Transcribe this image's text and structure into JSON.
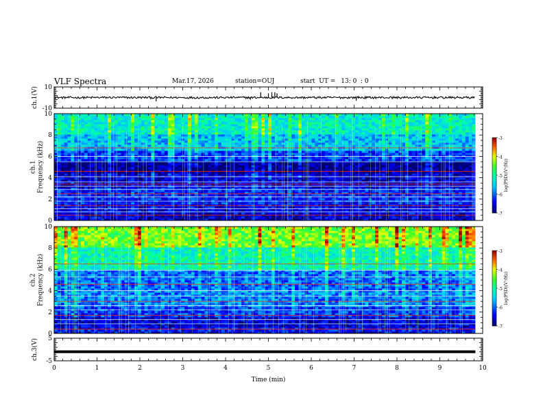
{
  "header": {
    "title": "VLF Spectra",
    "date": "Mar.17, 2026",
    "station": "station=OUJ",
    "start_label": "start  UT =",
    "start_time": "13: 0  : 0"
  },
  "chart_data": [
    {
      "type": "line",
      "name": "ch1-waveform",
      "ylabel": "ch.1(V)",
      "ylim": [
        -10,
        10
      ],
      "yticks": [
        "10",
        "-10"
      ],
      "xlim": [
        0,
        10
      ],
      "series": [
        {
          "name": "ch.1",
          "baseline": 0,
          "typical_amplitude": 1,
          "spikes": [
            {
              "t": 2.38,
              "v": -3.5
            },
            {
              "t": 4.58,
              "v": -2
            },
            {
              "t": 4.82,
              "v": 5
            },
            {
              "t": 5.0,
              "v": 4
            },
            {
              "t": 5.08,
              "v": 5
            },
            {
              "t": 5.15,
              "v": 5
            },
            {
              "t": 5.2,
              "v": 4
            },
            {
              "t": 7.05,
              "v": -3
            },
            {
              "t": 7.1,
              "v": 1.5
            },
            {
              "t": 8.73,
              "v": 1
            },
            {
              "t": 8.9,
              "v": 1
            }
          ]
        }
      ]
    },
    {
      "type": "heatmap",
      "name": "ch1-spectrogram",
      "ylabel": "ch.1\nFrequency (kHz)",
      "xlim": [
        0,
        10
      ],
      "ylim": [
        0,
        10
      ],
      "yticks": [
        "0",
        "2",
        "4",
        "6",
        "8",
        "10"
      ],
      "colorbar": {
        "label": "log(PSD)(V²/Hz)",
        "ticks": [
          "-3",
          "-4",
          "-5",
          "-6",
          "-7"
        ],
        "range": [
          -7,
          -3
        ]
      },
      "background_levels": [
        {
          "f_max": 0.5,
          "log_psd": -6.6
        },
        {
          "f_max": 1.5,
          "log_psd": -6.5
        },
        {
          "f_max": 3.0,
          "log_psd": -6.3
        },
        {
          "f_max": 4.5,
          "log_psd": -6.6
        },
        {
          "f_max": 5.5,
          "log_psd": -6.9
        },
        {
          "f_max": 6.5,
          "log_psd": -6.2
        },
        {
          "f_max": 8.0,
          "log_psd": -5.6
        },
        {
          "f_max": 10,
          "log_psd": -5.2
        }
      ],
      "lines_khz": [
        0.5,
        0.8,
        1.1,
        1.4,
        1.8,
        2.2,
        2.5,
        2.9,
        3.2,
        3.4,
        3.6,
        4.1,
        4.6,
        5.5,
        6.0,
        6.8
      ]
    },
    {
      "type": "heatmap",
      "name": "ch2-spectrogram",
      "ylabel": "ch.2\nFrequency (kHz)",
      "xlim": [
        0,
        10
      ],
      "ylim": [
        0,
        10
      ],
      "yticks": [
        "0",
        "2",
        "4",
        "6",
        "8",
        "10"
      ],
      "colorbar": {
        "label": "log(PSD)(V²/Hz)",
        "ticks": [
          "-3",
          "-4",
          "-5",
          "-6",
          "-7"
        ],
        "range": [
          -7,
          -3
        ]
      },
      "background_levels": [
        {
          "f_max": 0.5,
          "log_psd": -6.4
        },
        {
          "f_max": 1.5,
          "log_psd": -6.6
        },
        {
          "f_max": 2.5,
          "log_psd": -6.2
        },
        {
          "f_max": 4.0,
          "log_psd": -5.9
        },
        {
          "f_max": 6.0,
          "log_psd": -6.0
        },
        {
          "f_max": 8.0,
          "log_psd": -5.1
        },
        {
          "f_max": 10,
          "log_psd": -4.4
        }
      ],
      "lines_khz": [
        0.4,
        0.9,
        1.3,
        1.7,
        2.2,
        2.6,
        3.0,
        3.5,
        4.0,
        4.6,
        5.3,
        5.9,
        6.5
      ]
    },
    {
      "type": "line",
      "name": "ch3-trace",
      "ylabel": "ch.3(V)",
      "ylim": [
        -5,
        5
      ],
      "yticks": [
        "5",
        "-5"
      ],
      "xlim": [
        0,
        10
      ],
      "series": [
        {
          "name": "ch.3",
          "baseline": -1,
          "typical_amplitude": 0.2
        }
      ]
    }
  ],
  "xaxis": {
    "label": "Time (min)",
    "ticks": [
      "0",
      "1",
      "2",
      "3",
      "4",
      "5",
      "6",
      "7",
      "8",
      "9",
      "10"
    ],
    "data_end": 9.83
  }
}
